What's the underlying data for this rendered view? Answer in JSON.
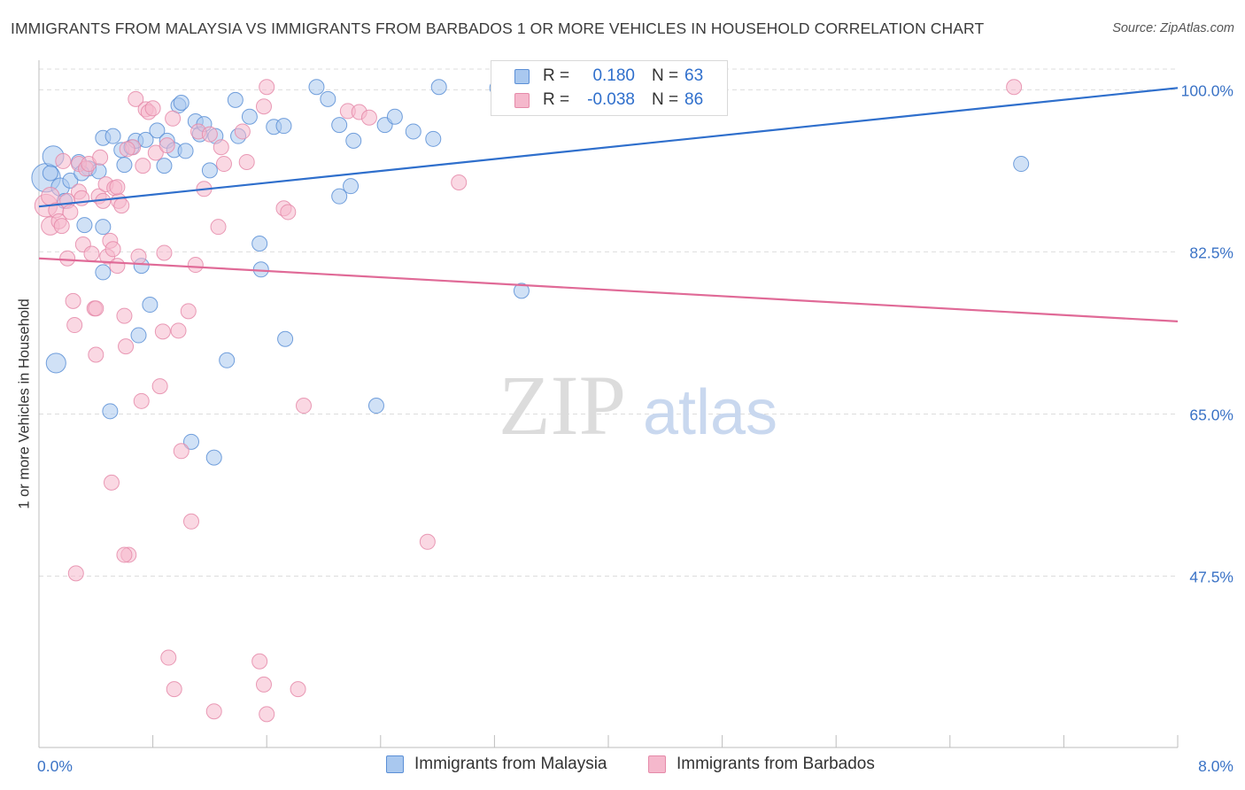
{
  "title": "IMMIGRANTS FROM MALAYSIA VS IMMIGRANTS FROM BARBADOS 1 OR MORE VEHICLES IN HOUSEHOLD CORRELATION CHART",
  "source": "Source: ZipAtlas.com",
  "watermark": {
    "zip": "ZIP",
    "atlas": "atlas"
  },
  "legend": {
    "r_label": "R =",
    "n_label": "N =",
    "rows": [
      {
        "r": "0.180",
        "n": "63"
      },
      {
        "r": "-0.038",
        "n": "86"
      }
    ]
  },
  "colors": {
    "malaysia_fill": "#a9c8ef",
    "malaysia_stroke": "#5b8fd6",
    "malaysia_line": "#2f6fcc",
    "barbados_fill": "#f5b8cc",
    "barbados_stroke": "#e58aa9",
    "barbados_line": "#e06a97",
    "tick_text": "#3b73c6",
    "grid": "#dddddd"
  },
  "chart_data": {
    "type": "scatter",
    "xlabel": "",
    "ylabel": "1 or more Vehicles in Household",
    "xlim": [
      0,
      8
    ],
    "ylim": [
      29,
      103
    ],
    "x_tick_labels": [
      {
        "value": 0,
        "label": "0.0%"
      },
      {
        "value": 8,
        "label": "8.0%"
      }
    ],
    "y_ticks": [
      {
        "value": 100,
        "label": "100.0%"
      },
      {
        "value": 82.5,
        "label": "82.5%"
      },
      {
        "value": 65,
        "label": "65.0%"
      },
      {
        "value": 47.5,
        "label": "47.5%"
      }
    ],
    "grid": true,
    "legend_position": "top-center",
    "series": [
      {
        "name": "Immigrants from Malaysia",
        "color": "#5b8fd6",
        "trend": {
          "x": [
            0,
            8
          ],
          "y": [
            87.4,
            100.2
          ]
        },
        "points": [
          {
            "x": 0.05,
            "y": 90.5,
            "s": 1.9
          },
          {
            "x": 0.1,
            "y": 92.8,
            "s": 1.4
          },
          {
            "x": 0.15,
            "y": 89.5,
            "s": 1.2
          },
          {
            "x": 0.22,
            "y": 90.2,
            "s": 1.0
          },
          {
            "x": 0.28,
            "y": 92.2,
            "s": 1.0
          },
          {
            "x": 0.35,
            "y": 91.5,
            "s": 1.0
          },
          {
            "x": 0.12,
            "y": 70.5,
            "s": 1.3
          },
          {
            "x": 0.32,
            "y": 85.4,
            "s": 1.0
          },
          {
            "x": 0.42,
            "y": 91.2,
            "s": 1.0
          },
          {
            "x": 0.45,
            "y": 85.2,
            "s": 1.0
          },
          {
            "x": 0.45,
            "y": 80.3,
            "s": 1.0
          },
          {
            "x": 0.45,
            "y": 94.8,
            "s": 1.0
          },
          {
            "x": 0.52,
            "y": 95.0,
            "s": 1.0
          },
          {
            "x": 0.58,
            "y": 93.5,
            "s": 1.0
          },
          {
            "x": 0.6,
            "y": 91.9,
            "s": 1.0
          },
          {
            "x": 0.65,
            "y": 93.8,
            "s": 1.0
          },
          {
            "x": 0.68,
            "y": 94.5,
            "s": 1.0
          },
          {
            "x": 0.75,
            "y": 94.6,
            "s": 1.0
          },
          {
            "x": 0.72,
            "y": 81.0,
            "s": 1.0
          },
          {
            "x": 0.78,
            "y": 76.8,
            "s": 1.0
          },
          {
            "x": 0.83,
            "y": 95.6,
            "s": 1.0
          },
          {
            "x": 0.88,
            "y": 91.8,
            "s": 1.0
          },
          {
            "x": 0.9,
            "y": 94.5,
            "s": 1.0
          },
          {
            "x": 0.95,
            "y": 93.5,
            "s": 1.0
          },
          {
            "x": 0.98,
            "y": 98.3,
            "s": 1.0
          },
          {
            "x": 1.0,
            "y": 98.6,
            "s": 1.0
          },
          {
            "x": 1.03,
            "y": 93.4,
            "s": 1.0
          },
          {
            "x": 1.1,
            "y": 96.6,
            "s": 1.0
          },
          {
            "x": 1.13,
            "y": 95.2,
            "s": 1.0
          },
          {
            "x": 1.16,
            "y": 96.3,
            "s": 1.0
          },
          {
            "x": 1.2,
            "y": 91.3,
            "s": 1.0
          },
          {
            "x": 1.24,
            "y": 95.0,
            "s": 1.0
          },
          {
            "x": 1.32,
            "y": 70.8,
            "s": 1.0
          },
          {
            "x": 1.38,
            "y": 98.9,
            "s": 1.0
          },
          {
            "x": 1.4,
            "y": 95.0,
            "s": 1.0
          },
          {
            "x": 1.48,
            "y": 97.1,
            "s": 1.0
          },
          {
            "x": 1.55,
            "y": 83.4,
            "s": 1.0
          },
          {
            "x": 1.56,
            "y": 80.6,
            "s": 1.0
          },
          {
            "x": 1.65,
            "y": 96.0,
            "s": 1.0
          },
          {
            "x": 1.72,
            "y": 96.1,
            "s": 1.0
          },
          {
            "x": 1.73,
            "y": 73.1,
            "s": 1.0
          },
          {
            "x": 1.95,
            "y": 100.3,
            "s": 1.0
          },
          {
            "x": 2.03,
            "y": 99.0,
            "s": 1.0
          },
          {
            "x": 2.11,
            "y": 96.2,
            "s": 1.0
          },
          {
            "x": 2.11,
            "y": 88.5,
            "s": 1.0
          },
          {
            "x": 2.19,
            "y": 89.6,
            "s": 1.0
          },
          {
            "x": 2.21,
            "y": 94.5,
            "s": 1.0
          },
          {
            "x": 2.37,
            "y": 65.9,
            "s": 1.0
          },
          {
            "x": 2.43,
            "y": 96.2,
            "s": 1.0
          },
          {
            "x": 2.5,
            "y": 97.1,
            "s": 1.0
          },
          {
            "x": 2.63,
            "y": 95.5,
            "s": 1.0
          },
          {
            "x": 2.77,
            "y": 94.7,
            "s": 1.0
          },
          {
            "x": 2.81,
            "y": 100.3,
            "s": 1.0
          },
          {
            "x": 3.22,
            "y": 100.2,
            "s": 1.0
          },
          {
            "x": 3.39,
            "y": 78.3,
            "s": 1.0
          },
          {
            "x": 0.5,
            "y": 65.3,
            "s": 1.0
          },
          {
            "x": 0.7,
            "y": 73.5,
            "s": 1.0
          },
          {
            "x": 1.07,
            "y": 62.0,
            "s": 1.0
          },
          {
            "x": 1.23,
            "y": 60.3,
            "s": 1.0
          },
          {
            "x": 6.9,
            "y": 92.0,
            "s": 1.0
          },
          {
            "x": 0.08,
            "y": 91.0,
            "s": 1.0
          },
          {
            "x": 0.18,
            "y": 88.0,
            "s": 1.0
          },
          {
            "x": 0.3,
            "y": 91.0,
            "s": 1.0
          }
        ]
      },
      {
        "name": "Immigrants from Barbados",
        "color": "#e58aa9",
        "trend": {
          "x": [
            0,
            8
          ],
          "y": [
            81.8,
            75.0
          ]
        },
        "points": [
          {
            "x": 0.05,
            "y": 87.5,
            "s": 1.5
          },
          {
            "x": 0.08,
            "y": 88.5,
            "s": 1.2
          },
          {
            "x": 0.08,
            "y": 85.3,
            "s": 1.2
          },
          {
            "x": 0.12,
            "y": 87.0,
            "s": 1.0
          },
          {
            "x": 0.14,
            "y": 85.8,
            "s": 1.0
          },
          {
            "x": 0.16,
            "y": 85.3,
            "s": 1.0
          },
          {
            "x": 0.17,
            "y": 92.3,
            "s": 1.0
          },
          {
            "x": 0.2,
            "y": 88.0,
            "s": 1.0
          },
          {
            "x": 0.2,
            "y": 81.8,
            "s": 1.0
          },
          {
            "x": 0.22,
            "y": 86.8,
            "s": 1.0
          },
          {
            "x": 0.24,
            "y": 77.2,
            "s": 1.0
          },
          {
            "x": 0.25,
            "y": 74.6,
            "s": 1.0
          },
          {
            "x": 0.26,
            "y": 47.8,
            "s": 1.0
          },
          {
            "x": 0.28,
            "y": 89.0,
            "s": 1.0
          },
          {
            "x": 0.28,
            "y": 92.0,
            "s": 1.0
          },
          {
            "x": 0.3,
            "y": 88.3,
            "s": 1.0
          },
          {
            "x": 0.31,
            "y": 83.3,
            "s": 1.0
          },
          {
            "x": 0.33,
            "y": 91.5,
            "s": 1.0
          },
          {
            "x": 0.35,
            "y": 92.0,
            "s": 1.0
          },
          {
            "x": 0.37,
            "y": 82.3,
            "s": 1.0
          },
          {
            "x": 0.39,
            "y": 76.4,
            "s": 1.0
          },
          {
            "x": 0.4,
            "y": 71.4,
            "s": 1.0
          },
          {
            "x": 0.42,
            "y": 88.5,
            "s": 1.0
          },
          {
            "x": 0.43,
            "y": 92.7,
            "s": 1.0
          },
          {
            "x": 0.45,
            "y": 88.0,
            "s": 1.0
          },
          {
            "x": 0.47,
            "y": 89.8,
            "s": 1.0
          },
          {
            "x": 0.48,
            "y": 82.0,
            "s": 1.0
          },
          {
            "x": 0.5,
            "y": 83.7,
            "s": 1.0
          },
          {
            "x": 0.51,
            "y": 57.6,
            "s": 1.0
          },
          {
            "x": 0.52,
            "y": 82.8,
            "s": 1.0
          },
          {
            "x": 0.53,
            "y": 89.4,
            "s": 1.0
          },
          {
            "x": 0.55,
            "y": 81.0,
            "s": 1.0
          },
          {
            "x": 0.56,
            "y": 88.0,
            "s": 1.0
          },
          {
            "x": 0.58,
            "y": 87.5,
            "s": 1.0
          },
          {
            "x": 0.6,
            "y": 75.6,
            "s": 1.0
          },
          {
            "x": 0.61,
            "y": 72.3,
            "s": 1.0
          },
          {
            "x": 0.63,
            "y": 49.8,
            "s": 1.0
          },
          {
            "x": 0.66,
            "y": 93.8,
            "s": 1.0
          },
          {
            "x": 0.68,
            "y": 99.0,
            "s": 1.0
          },
          {
            "x": 0.7,
            "y": 82.0,
            "s": 1.0
          },
          {
            "x": 0.72,
            "y": 66.4,
            "s": 1.0
          },
          {
            "x": 0.73,
            "y": 91.8,
            "s": 1.0
          },
          {
            "x": 0.75,
            "y": 97.9,
            "s": 1.0
          },
          {
            "x": 0.77,
            "y": 97.6,
            "s": 1.0
          },
          {
            "x": 0.8,
            "y": 98.0,
            "s": 1.0
          },
          {
            "x": 0.82,
            "y": 93.2,
            "s": 1.0
          },
          {
            "x": 0.85,
            "y": 68.0,
            "s": 1.0
          },
          {
            "x": 0.87,
            "y": 73.9,
            "s": 1.0
          },
          {
            "x": 0.88,
            "y": 82.4,
            "s": 1.0
          },
          {
            "x": 0.9,
            "y": 94.0,
            "s": 1.0
          },
          {
            "x": 0.91,
            "y": 38.7,
            "s": 1.0
          },
          {
            "x": 0.94,
            "y": 96.9,
            "s": 1.0
          },
          {
            "x": 0.98,
            "y": 74.0,
            "s": 1.0
          },
          {
            "x": 1.0,
            "y": 61.0,
            "s": 1.0
          },
          {
            "x": 1.05,
            "y": 76.1,
            "s": 1.0
          },
          {
            "x": 1.07,
            "y": 53.4,
            "s": 1.0
          },
          {
            "x": 1.1,
            "y": 81.1,
            "s": 1.0
          },
          {
            "x": 1.12,
            "y": 95.5,
            "s": 1.0
          },
          {
            "x": 1.16,
            "y": 89.3,
            "s": 1.0
          },
          {
            "x": 1.2,
            "y": 95.2,
            "s": 1.0
          },
          {
            "x": 1.23,
            "y": 32.9,
            "s": 1.0
          },
          {
            "x": 1.26,
            "y": 85.2,
            "s": 1.0
          },
          {
            "x": 1.28,
            "y": 93.8,
            "s": 1.0
          },
          {
            "x": 1.43,
            "y": 95.5,
            "s": 1.0
          },
          {
            "x": 1.46,
            "y": 92.2,
            "s": 1.0
          },
          {
            "x": 1.55,
            "y": 38.3,
            "s": 1.0
          },
          {
            "x": 1.58,
            "y": 35.8,
            "s": 1.0
          },
          {
            "x": 1.58,
            "y": 98.2,
            "s": 1.0
          },
          {
            "x": 1.6,
            "y": 100.3,
            "s": 1.0
          },
          {
            "x": 1.6,
            "y": 32.6,
            "s": 1.0
          },
          {
            "x": 1.72,
            "y": 87.2,
            "s": 1.0
          },
          {
            "x": 1.75,
            "y": 86.8,
            "s": 1.0
          },
          {
            "x": 1.82,
            "y": 35.3,
            "s": 1.0
          },
          {
            "x": 1.86,
            "y": 65.9,
            "s": 1.0
          },
          {
            "x": 2.17,
            "y": 97.7,
            "s": 1.0
          },
          {
            "x": 2.25,
            "y": 97.6,
            "s": 1.0
          },
          {
            "x": 2.32,
            "y": 97.0,
            "s": 1.0
          },
          {
            "x": 2.73,
            "y": 51.2,
            "s": 1.0
          },
          {
            "x": 2.95,
            "y": 90.0,
            "s": 1.0
          },
          {
            "x": 6.85,
            "y": 100.3,
            "s": 1.0
          },
          {
            "x": 0.55,
            "y": 89.5,
            "s": 1.0
          },
          {
            "x": 0.95,
            "y": 35.3,
            "s": 1.0
          },
          {
            "x": 0.6,
            "y": 49.8,
            "s": 1.0
          },
          {
            "x": 0.4,
            "y": 76.4,
            "s": 1.0
          },
          {
            "x": 0.62,
            "y": 93.6,
            "s": 1.0
          },
          {
            "x": 1.3,
            "y": 92.0,
            "s": 1.0
          }
        ]
      }
    ]
  }
}
